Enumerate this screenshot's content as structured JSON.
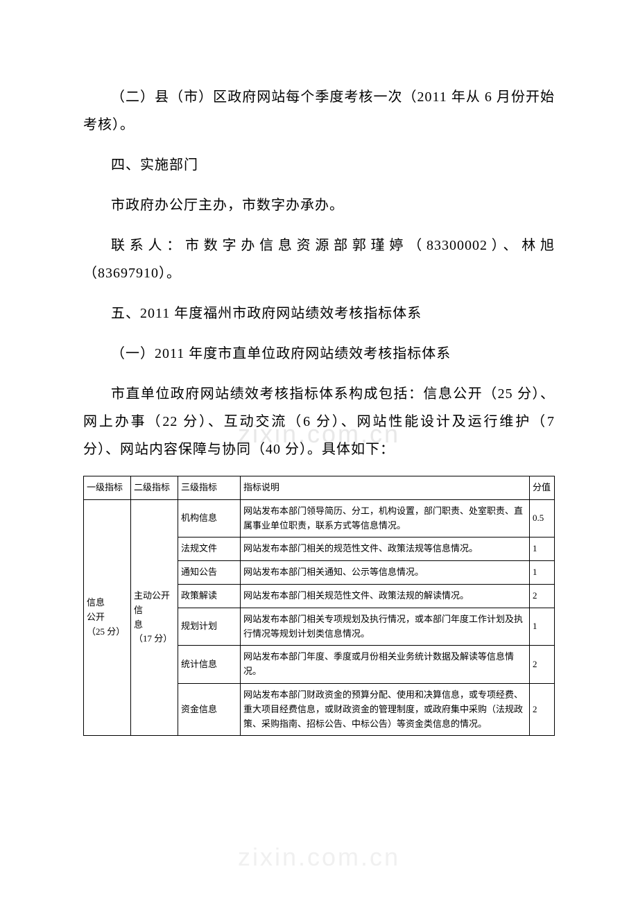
{
  "watermark": "zixin.com.cn",
  "paragraphs": {
    "p1": "（二）县（市）区政府网站每个季度考核一次（2011 年从 6 月份开始考核）。",
    "p2": "四、实施部门",
    "p3": "市政府办公厅主办，市数字办承办。",
    "p4": "联系人：市数字办信息资源部郭瑾婷（83300002）、林旭（83697910）。",
    "p5": "五、2011 年度福州市政府网站绩效考核指标体系",
    "p6": "（一）2011 年度市直单位政府网站绩效考核指标体系",
    "p7": "市直单位政府网站绩效考核指标体系构成包括：信息公开（25 分）、网上办事（22 分）、互动交流（6 分）、网站性能设计及运行维护（7 分）、网站内容保障与协同（40 分）。具体如下："
  },
  "table": {
    "headers": {
      "h1": "一级指标",
      "h2": "二级指标",
      "h3": "三级指标",
      "h4": "指标说明",
      "h5": "分值"
    },
    "level1": "信息\n公开\n（25 分）",
    "level2": "主动公开信\n息\n（17 分）",
    "rows": [
      {
        "l3": "机构信息",
        "desc": "网站发布本部门领导简历、分工，机构设置，部门职责、处室职责、直属事业单位职责，联系方式等信息情况。",
        "score": "0.5"
      },
      {
        "l3": "法规文件",
        "desc": "网站发布本部门相关的规范性文件、政策法规等信息情况。",
        "score": "1"
      },
      {
        "l3": "通知公告",
        "desc": "网站发布本部门相关通知、公示等信息情况。",
        "score": "1"
      },
      {
        "l3": "政策解读",
        "desc": "网站发布本部门相关规范性文件、政策法规的解读情况。",
        "score": "2"
      },
      {
        "l3": "规划计划",
        "desc": "网站发布本部门相关专项规划及执行情况，或本部门年度工作计划及执行情况等规划计划类信息情况。",
        "score": "1"
      },
      {
        "l3": "统计信息",
        "desc": "网站发布本部门年度、季度或月份相关业务统计数据及解读等信息情况。",
        "score": "2"
      },
      {
        "l3": "资金信息",
        "desc": "网站发布本部门财政资金的预算分配、使用和决算信息，或专项经费、重大项目经费信息，或财政资金的管理制度，或政府集中采购（法规政策、采购指南、招标公告、中标公告）等资金类信息的情况。",
        "score": "2"
      }
    ]
  }
}
